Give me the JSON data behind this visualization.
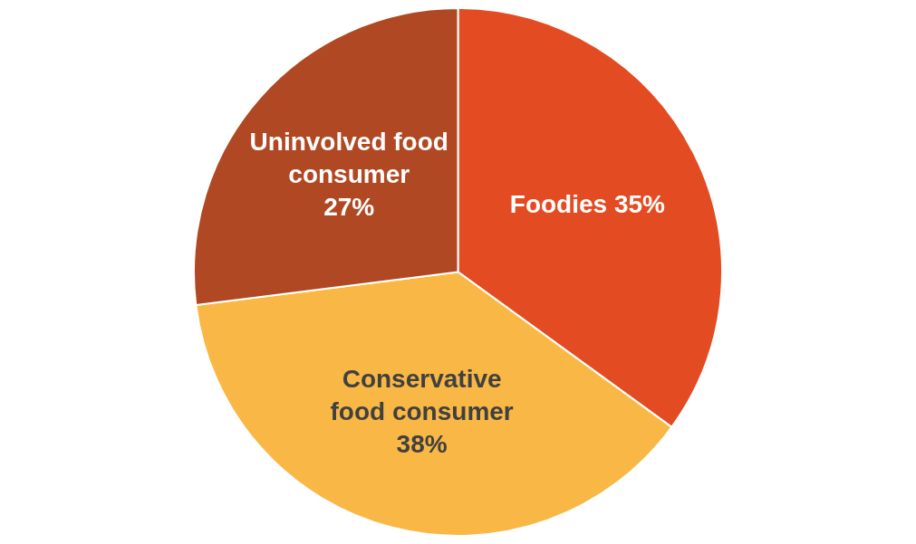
{
  "chart_data": {
    "type": "pie",
    "categories": [
      "Foodies",
      "Conservative food consumer",
      "Uninvolved food consumer"
    ],
    "values": [
      35,
      38,
      27
    ],
    "colors": [
      "#e34c22",
      "#f9b845",
      "#b04823"
    ],
    "value_labels": [
      "35%",
      "38%",
      "27%"
    ],
    "legend": false
  }
}
